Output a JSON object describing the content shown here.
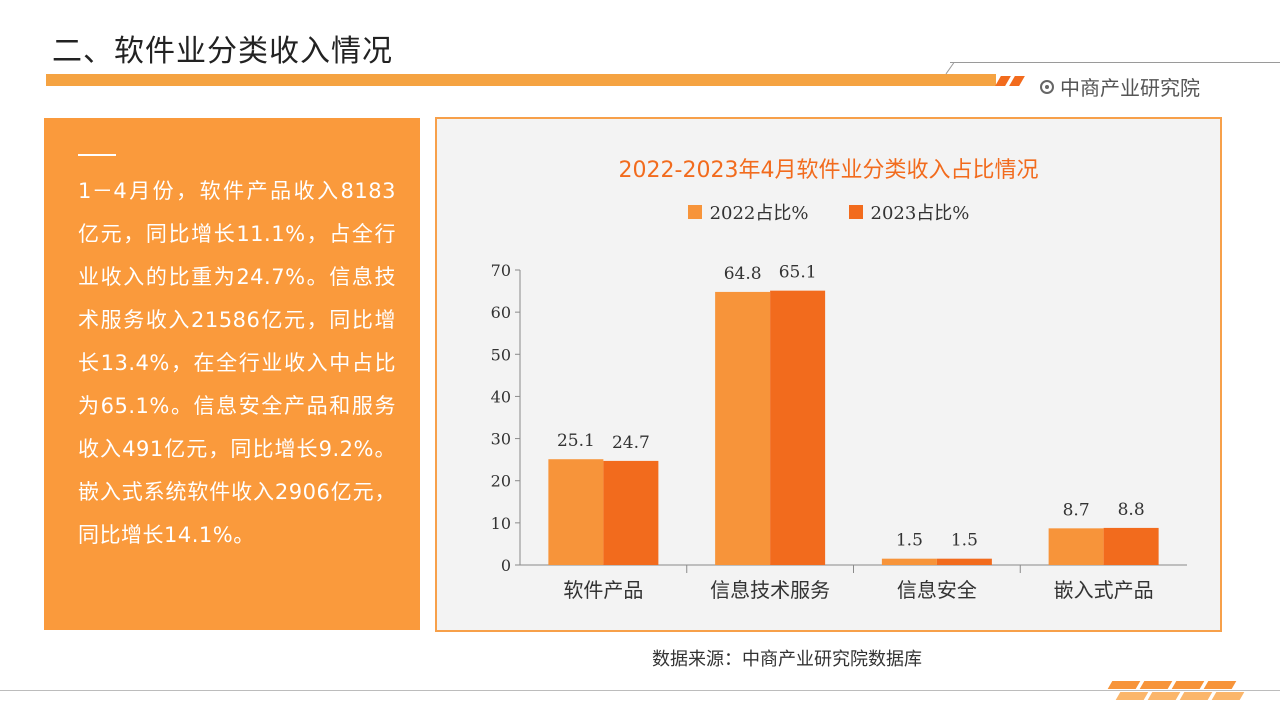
{
  "header": {
    "title": "二、软件业分类收入情况",
    "brand": "中商产业研究院"
  },
  "panel": {
    "text": "1－4月份，软件产品收入8183亿元，同比增长11.1%，占全行业收入的比重为24.7%。信息技术服务收入21586亿元，同比增长13.4%，在全行业收入中占比为65.1%。信息安全产品和服务收入491亿元，同比增长9.2%。嵌入式系统软件收入2906亿元，同比增长14.1%。"
  },
  "source": "数据来源：中商产业研究院数据库",
  "colors": {
    "accent": "#f26b1d",
    "panel_bg": "#fa9a3c",
    "series_2022": "#f7943a",
    "series_2023": "#f26b1d"
  },
  "chart_data": {
    "type": "bar",
    "title": "2022-2023年4月软件业分类收入占比情况",
    "categories": [
      "软件产品",
      "信息技术服务",
      "信息安全",
      "嵌入式产品"
    ],
    "series": [
      {
        "name": "2022占比%",
        "values": [
          25.1,
          64.8,
          1.5,
          8.7
        ],
        "labels": [
          "25.1",
          "64.8",
          "1.5",
          "8.7"
        ]
      },
      {
        "name": "2023占比%",
        "values": [
          24.7,
          65.1,
          1.5,
          8.8
        ],
        "labels": [
          "24.7",
          "65.1",
          "1.5",
          "8.8"
        ]
      }
    ],
    "ylim": [
      0,
      70
    ],
    "yticks": [
      0,
      10,
      20,
      30,
      40,
      50,
      60,
      70
    ],
    "grid": false,
    "legend": "top-center",
    "show_data_labels": true
  }
}
